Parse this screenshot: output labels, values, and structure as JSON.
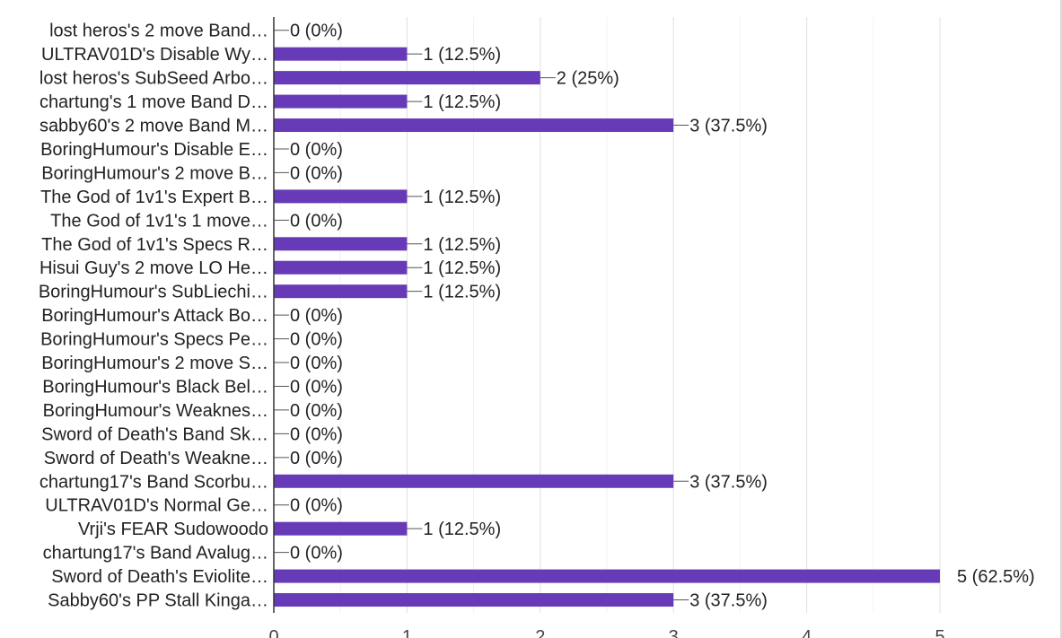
{
  "chart_data": {
    "type": "bar",
    "orientation": "horizontal",
    "bar_color": "#673ab7",
    "grid": true,
    "xlim": [
      0,
      5
    ],
    "x_ticks": [
      "0",
      "1",
      "2",
      "3",
      "4",
      "5"
    ],
    "categories": [
      "lost heros's 2 move Band…",
      "ULTRAV01D's Disable Wy…",
      "lost heros's SubSeed Arbo…",
      "chartung's 1 move Band D…",
      "sabby60's 2 move Band M…",
      "BoringHumour's Disable E…",
      "BoringHumour's 2 move B…",
      "The God of 1v1's Expert B…",
      "The God of 1v1's 1 move…",
      "The God of 1v1's Specs R…",
      "Hisui Guy's 2 move LO He…",
      "BoringHumour's SubLiechi…",
      "BoringHumour's Attack Bo…",
      "BoringHumour's Specs Pe…",
      "BoringHumour's 2 move S…",
      "BoringHumour's Black Bel…",
      "BoringHumour's Weaknes…",
      "Sword of Death's Band Sk…",
      "Sword of Death's Weakne…",
      "chartung17's Band Scorbu…",
      "ULTRAV01D's Normal Ge…",
      "Vrji's FEAR Sudowoodo",
      "chartung17's Band Avalug…",
      "Sword of Death's Eviolite…",
      "Sabby60's PP Stall Kinga…"
    ],
    "values": [
      0,
      1,
      2,
      1,
      3,
      0,
      0,
      1,
      0,
      1,
      1,
      1,
      0,
      0,
      0,
      0,
      0,
      0,
      0,
      3,
      0,
      1,
      0,
      5,
      3
    ],
    "value_labels": [
      "0 (0%)",
      "1 (12.5%)",
      "2 (25%)",
      "1 (12.5%)",
      "3 (37.5%)",
      "0 (0%)",
      "0 (0%)",
      "1 (12.5%)",
      "0 (0%)",
      "1 (12.5%)",
      "1 (12.5%)",
      "1 (12.5%)",
      "0 (0%)",
      "0 (0%)",
      "0 (0%)",
      "0 (0%)",
      "0 (0%)",
      "0 (0%)",
      "0 (0%)",
      "3 (37.5%)",
      "0 (0%)",
      "1 (12.5%)",
      "0 (0%)",
      "5 (62.5%)",
      "3 (37.5%)"
    ]
  }
}
